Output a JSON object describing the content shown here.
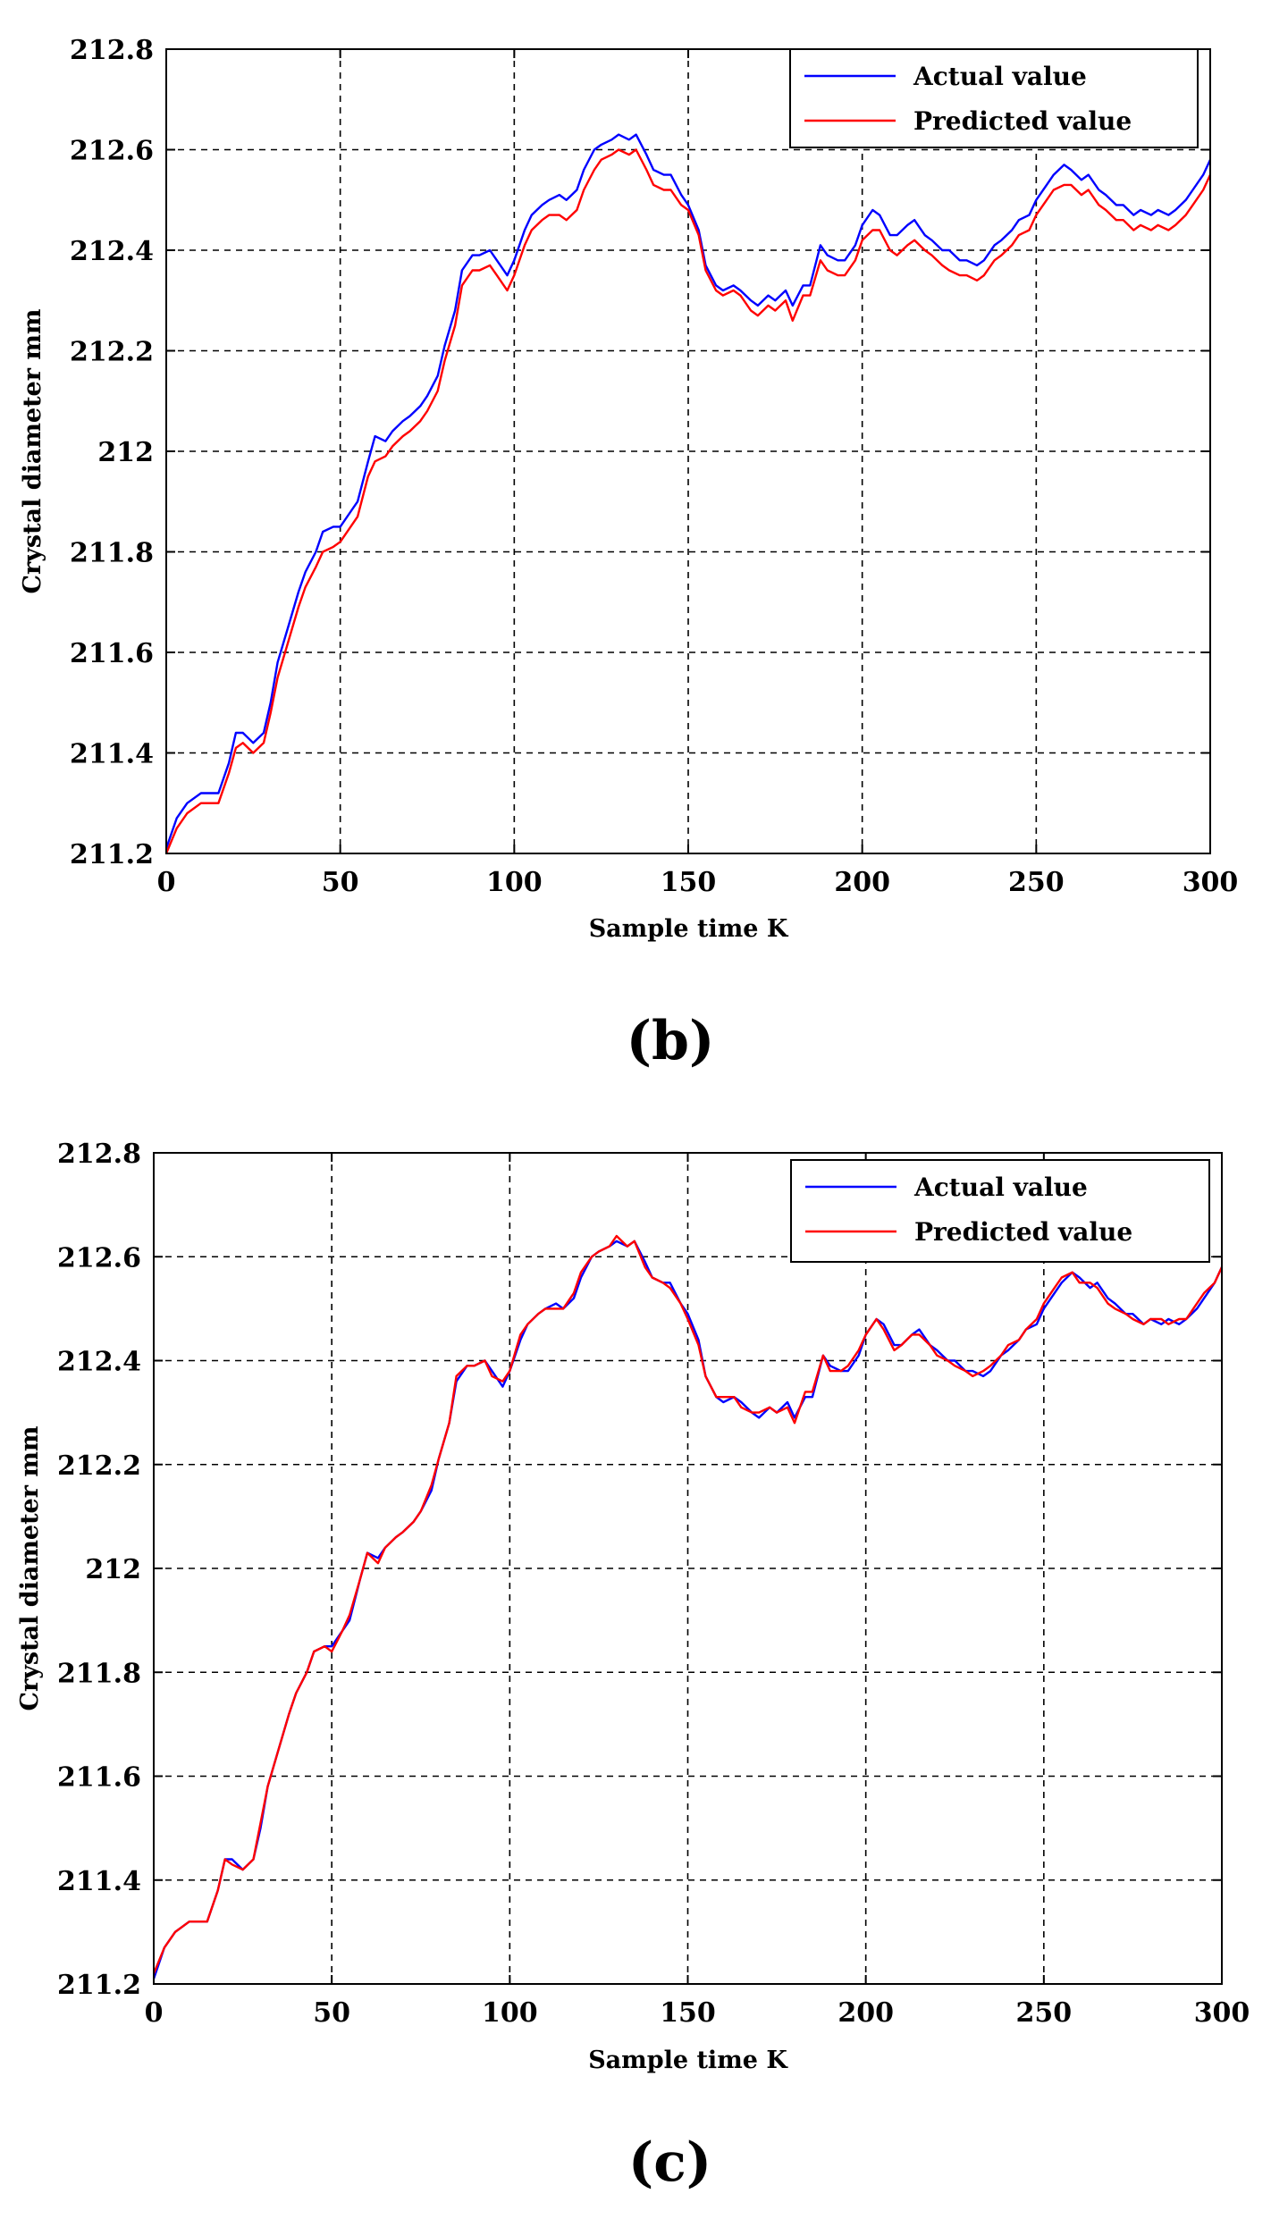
{
  "chart_data": [
    {
      "type": "line",
      "panel_label": "(b)",
      "xlabel": "Sample time K",
      "ylabel": "Crystal diameter  mm",
      "xlim": [
        0,
        300
      ],
      "ylim": [
        211.2,
        212.8
      ],
      "x_ticks": [
        0,
        50,
        100,
        150,
        200,
        250,
        300
      ],
      "y_ticks": [
        211.2,
        211.4,
        211.6,
        211.8,
        212,
        212.2,
        212.4,
        212.6,
        212.8
      ],
      "grid": true,
      "legend_position": "top-right",
      "series": [
        {
          "name": "Actual value",
          "color": "#0000ff",
          "x": [
            0,
            3,
            6,
            10,
            15,
            18,
            20,
            22,
            25,
            28,
            30,
            32,
            35,
            38,
            40,
            43,
            45,
            48,
            50,
            53,
            55,
            58,
            60,
            63,
            65,
            68,
            70,
            73,
            75,
            78,
            80,
            83,
            85,
            88,
            90,
            93,
            95,
            98,
            100,
            103,
            105,
            108,
            110,
            113,
            115,
            118,
            120,
            123,
            125,
            128,
            130,
            133,
            135,
            138,
            140,
            143,
            145,
            148,
            150,
            153,
            155,
            158,
            160,
            163,
            165,
            168,
            170,
            173,
            175,
            178,
            180,
            183,
            185,
            188,
            190,
            193,
            195,
            198,
            200,
            203,
            205,
            208,
            210,
            213,
            215,
            218,
            220,
            223,
            225,
            228,
            230,
            233,
            235,
            238,
            240,
            243,
            245,
            248,
            250,
            253,
            255,
            258,
            260,
            263,
            265,
            268,
            270,
            273,
            275,
            278,
            280,
            283,
            285,
            288,
            290,
            293,
            295,
            298,
            300
          ],
          "y": [
            211.21,
            211.27,
            211.3,
            211.32,
            211.32,
            211.38,
            211.44,
            211.44,
            211.42,
            211.44,
            211.5,
            211.58,
            211.65,
            211.72,
            211.76,
            211.8,
            211.84,
            211.85,
            211.85,
            211.88,
            211.9,
            211.98,
            212.03,
            212.02,
            212.04,
            212.06,
            212.07,
            212.09,
            212.11,
            212.15,
            212.21,
            212.28,
            212.36,
            212.39,
            212.39,
            212.4,
            212.38,
            212.35,
            212.38,
            212.44,
            212.47,
            212.49,
            212.5,
            212.51,
            212.5,
            212.52,
            212.56,
            212.6,
            212.61,
            212.62,
            212.63,
            212.62,
            212.63,
            212.59,
            212.56,
            212.55,
            212.55,
            212.51,
            212.49,
            212.44,
            212.37,
            212.33,
            212.32,
            212.33,
            212.32,
            212.3,
            212.29,
            212.31,
            212.3,
            212.32,
            212.29,
            212.33,
            212.33,
            212.41,
            212.39,
            212.38,
            212.38,
            212.41,
            212.45,
            212.48,
            212.47,
            212.43,
            212.43,
            212.45,
            212.46,
            212.43,
            212.42,
            212.4,
            212.4,
            212.38,
            212.38,
            212.37,
            212.38,
            212.41,
            212.42,
            212.44,
            212.46,
            212.47,
            212.5,
            212.53,
            212.55,
            212.57,
            212.56,
            212.54,
            212.55,
            212.52,
            212.51,
            212.49,
            212.49,
            212.47,
            212.48,
            212.47,
            212.48,
            212.47,
            212.48,
            212.5,
            212.52,
            212.55,
            212.58
          ]
        },
        {
          "name": "Predicted value",
          "color": "#ff0000",
          "x": [
            0,
            3,
            6,
            10,
            15,
            18,
            20,
            22,
            25,
            28,
            30,
            32,
            35,
            38,
            40,
            43,
            45,
            48,
            50,
            53,
            55,
            58,
            60,
            63,
            65,
            68,
            70,
            73,
            75,
            78,
            80,
            83,
            85,
            88,
            90,
            93,
            95,
            98,
            100,
            103,
            105,
            108,
            110,
            113,
            115,
            118,
            120,
            123,
            125,
            128,
            130,
            133,
            135,
            138,
            140,
            143,
            145,
            148,
            150,
            153,
            155,
            158,
            160,
            163,
            165,
            168,
            170,
            173,
            175,
            178,
            180,
            183,
            185,
            188,
            190,
            193,
            195,
            198,
            200,
            203,
            205,
            208,
            210,
            213,
            215,
            218,
            220,
            223,
            225,
            228,
            230,
            233,
            235,
            238,
            240,
            243,
            245,
            248,
            250,
            253,
            255,
            258,
            260,
            263,
            265,
            268,
            270,
            273,
            275,
            278,
            280,
            283,
            285,
            288,
            290,
            293,
            295,
            298,
            300
          ],
          "y": [
            211.2,
            211.25,
            211.28,
            211.3,
            211.3,
            211.36,
            211.41,
            211.42,
            211.4,
            211.42,
            211.48,
            211.55,
            211.62,
            211.69,
            211.73,
            211.77,
            211.8,
            211.81,
            211.82,
            211.85,
            211.87,
            211.95,
            211.98,
            211.99,
            212.01,
            212.03,
            212.04,
            212.06,
            212.08,
            212.12,
            212.18,
            212.25,
            212.33,
            212.36,
            212.36,
            212.37,
            212.35,
            212.32,
            212.35,
            212.41,
            212.44,
            212.46,
            212.47,
            212.47,
            212.46,
            212.48,
            212.52,
            212.56,
            212.58,
            212.59,
            212.6,
            212.59,
            212.6,
            212.56,
            212.53,
            212.52,
            212.52,
            212.49,
            212.48,
            212.43,
            212.36,
            212.32,
            212.31,
            212.32,
            212.31,
            212.28,
            212.27,
            212.29,
            212.28,
            212.3,
            212.26,
            212.31,
            212.31,
            212.38,
            212.36,
            212.35,
            212.35,
            212.38,
            212.42,
            212.44,
            212.44,
            212.4,
            212.39,
            212.41,
            212.42,
            212.4,
            212.39,
            212.37,
            212.36,
            212.35,
            212.35,
            212.34,
            212.35,
            212.38,
            212.39,
            212.41,
            212.43,
            212.44,
            212.47,
            212.5,
            212.52,
            212.53,
            212.53,
            212.51,
            212.52,
            212.49,
            212.48,
            212.46,
            212.46,
            212.44,
            212.45,
            212.44,
            212.45,
            212.44,
            212.45,
            212.47,
            212.49,
            212.52,
            212.55
          ]
        }
      ]
    },
    {
      "type": "line",
      "panel_label": "(c)",
      "xlabel": "Sample time K",
      "ylabel": "Crystal diameter  mm",
      "xlim": [
        0,
        300
      ],
      "ylim": [
        211.2,
        212.8
      ],
      "x_ticks": [
        0,
        50,
        100,
        150,
        200,
        250,
        300
      ],
      "y_ticks": [
        211.2,
        211.4,
        211.6,
        211.8,
        212,
        212.2,
        212.4,
        212.6,
        212.8
      ],
      "grid": true,
      "legend_position": "top-right",
      "series": [
        {
          "name": "Actual value",
          "color": "#0000ff",
          "x": [
            0,
            3,
            6,
            10,
            15,
            18,
            20,
            22,
            25,
            28,
            30,
            32,
            35,
            38,
            40,
            43,
            45,
            48,
            50,
            53,
            55,
            58,
            60,
            63,
            65,
            68,
            70,
            73,
            75,
            78,
            80,
            83,
            85,
            88,
            90,
            93,
            95,
            98,
            100,
            103,
            105,
            108,
            110,
            113,
            115,
            118,
            120,
            123,
            125,
            128,
            130,
            133,
            135,
            138,
            140,
            143,
            145,
            148,
            150,
            153,
            155,
            158,
            160,
            163,
            165,
            168,
            170,
            173,
            175,
            178,
            180,
            183,
            185,
            188,
            190,
            193,
            195,
            198,
            200,
            203,
            205,
            208,
            210,
            213,
            215,
            218,
            220,
            223,
            225,
            228,
            230,
            233,
            235,
            238,
            240,
            243,
            245,
            248,
            250,
            253,
            255,
            258,
            260,
            263,
            265,
            268,
            270,
            273,
            275,
            278,
            280,
            283,
            285,
            288,
            290,
            293,
            295,
            298,
            300
          ],
          "y": [
            211.21,
            211.27,
            211.3,
            211.32,
            211.32,
            211.38,
            211.44,
            211.44,
            211.42,
            211.44,
            211.5,
            211.58,
            211.65,
            211.72,
            211.76,
            211.8,
            211.84,
            211.85,
            211.85,
            211.88,
            211.9,
            211.98,
            212.03,
            212.02,
            212.04,
            212.06,
            212.07,
            212.09,
            212.11,
            212.15,
            212.21,
            212.28,
            212.36,
            212.39,
            212.39,
            212.4,
            212.38,
            212.35,
            212.38,
            212.44,
            212.47,
            212.49,
            212.5,
            212.51,
            212.5,
            212.52,
            212.56,
            212.6,
            212.61,
            212.62,
            212.63,
            212.62,
            212.63,
            212.59,
            212.56,
            212.55,
            212.55,
            212.51,
            212.49,
            212.44,
            212.37,
            212.33,
            212.32,
            212.33,
            212.32,
            212.3,
            212.29,
            212.31,
            212.3,
            212.32,
            212.29,
            212.33,
            212.33,
            212.41,
            212.39,
            212.38,
            212.38,
            212.41,
            212.45,
            212.48,
            212.47,
            212.43,
            212.43,
            212.45,
            212.46,
            212.43,
            212.42,
            212.4,
            212.4,
            212.38,
            212.38,
            212.37,
            212.38,
            212.41,
            212.42,
            212.44,
            212.46,
            212.47,
            212.5,
            212.53,
            212.55,
            212.57,
            212.56,
            212.54,
            212.55,
            212.52,
            212.51,
            212.49,
            212.49,
            212.47,
            212.48,
            212.47,
            212.48,
            212.47,
            212.48,
            212.5,
            212.52,
            212.55,
            212.58
          ]
        },
        {
          "name": "Predicted value",
          "color": "#ff0000",
          "x": [
            0,
            3,
            6,
            10,
            15,
            18,
            20,
            22,
            25,
            28,
            30,
            32,
            35,
            38,
            40,
            43,
            45,
            48,
            50,
            53,
            55,
            58,
            60,
            63,
            65,
            68,
            70,
            73,
            75,
            78,
            80,
            83,
            85,
            88,
            90,
            93,
            95,
            98,
            100,
            103,
            105,
            108,
            110,
            113,
            115,
            118,
            120,
            123,
            125,
            128,
            130,
            133,
            135,
            138,
            140,
            143,
            145,
            148,
            150,
            153,
            155,
            158,
            160,
            163,
            165,
            168,
            170,
            173,
            175,
            178,
            180,
            183,
            185,
            188,
            190,
            193,
            195,
            198,
            200,
            203,
            205,
            208,
            210,
            213,
            215,
            218,
            220,
            223,
            225,
            228,
            230,
            233,
            235,
            238,
            240,
            243,
            245,
            248,
            250,
            253,
            255,
            258,
            260,
            263,
            265,
            268,
            270,
            273,
            275,
            278,
            280,
            283,
            285,
            288,
            290,
            293,
            295,
            298,
            300
          ],
          "y": [
            211.22,
            211.27,
            211.3,
            211.32,
            211.32,
            211.38,
            211.44,
            211.43,
            211.42,
            211.44,
            211.51,
            211.58,
            211.65,
            211.72,
            211.76,
            211.8,
            211.84,
            211.85,
            211.84,
            211.88,
            211.91,
            211.98,
            212.03,
            212.01,
            212.04,
            212.06,
            212.07,
            212.09,
            212.11,
            212.16,
            212.21,
            212.28,
            212.37,
            212.39,
            212.39,
            212.4,
            212.37,
            212.36,
            212.38,
            212.45,
            212.47,
            212.49,
            212.5,
            212.5,
            212.5,
            212.53,
            212.57,
            212.6,
            212.61,
            212.62,
            212.64,
            212.62,
            212.63,
            212.58,
            212.56,
            212.55,
            212.54,
            212.51,
            212.48,
            212.43,
            212.37,
            212.33,
            212.33,
            212.33,
            212.31,
            212.3,
            212.3,
            212.31,
            212.3,
            212.31,
            212.28,
            212.34,
            212.34,
            212.41,
            212.38,
            212.38,
            212.39,
            212.42,
            212.45,
            212.48,
            212.46,
            212.42,
            212.43,
            212.45,
            212.45,
            212.43,
            212.41,
            212.4,
            212.39,
            212.38,
            212.37,
            212.38,
            212.39,
            212.41,
            212.43,
            212.44,
            212.46,
            212.48,
            212.51,
            212.54,
            212.56,
            212.57,
            212.55,
            212.55,
            212.54,
            212.51,
            212.5,
            212.49,
            212.48,
            212.47,
            212.48,
            212.48,
            212.47,
            212.48,
            212.48,
            212.51,
            212.53,
            212.55,
            212.58
          ]
        }
      ]
    }
  ]
}
